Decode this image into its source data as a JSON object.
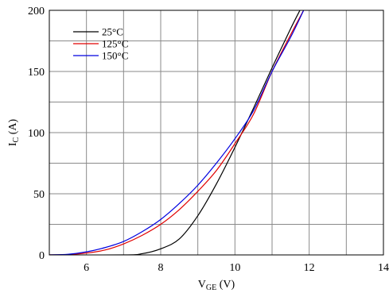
{
  "chart_data": {
    "type": "line",
    "title": "",
    "xlabel": {
      "main": "V",
      "sub": "GE",
      "unit": " (V)"
    },
    "ylabel": {
      "main": "I",
      "sub": "C",
      "unit": " (A)"
    },
    "xlim": [
      5,
      14
    ],
    "ylim": [
      0,
      200
    ],
    "xticks": [
      6,
      8,
      10,
      12,
      14
    ],
    "yticks": [
      0,
      50,
      100,
      150,
      200
    ],
    "x_minor_step": 1,
    "y_minor_step": 25,
    "grid": true,
    "legend_position": "top-left",
    "series": [
      {
        "name": "25°C",
        "color": "#000000",
        "x": [
          5,
          7,
          7.5,
          8,
          8.5,
          9,
          9.5,
          10,
          10.5,
          11,
          11.5,
          11.75
        ],
        "y": [
          0,
          0,
          1,
          5,
          13,
          32,
          58,
          88,
          120,
          153,
          185,
          200
        ]
      },
      {
        "name": "125°C",
        "color": "#e00000",
        "x": [
          5,
          5.5,
          6,
          6.5,
          7,
          7.5,
          8,
          8.5,
          9,
          9.5,
          10,
          10.5,
          11,
          11.5,
          11.85
        ],
        "y": [
          0,
          0.3,
          1.5,
          4,
          9,
          16,
          25,
          37,
          52,
          69,
          91,
          115,
          150,
          180,
          200
        ]
      },
      {
        "name": "150°C",
        "color": "#0000e0",
        "x": [
          5,
          5.5,
          6,
          6.5,
          7,
          7.5,
          8,
          8.5,
          9,
          9.5,
          10,
          10.5,
          11,
          11.5,
          11.85
        ],
        "y": [
          0,
          0.5,
          2.5,
          6,
          11,
          19,
          29,
          42,
          57,
          75,
          95,
          118,
          150,
          178,
          200
        ]
      }
    ]
  }
}
